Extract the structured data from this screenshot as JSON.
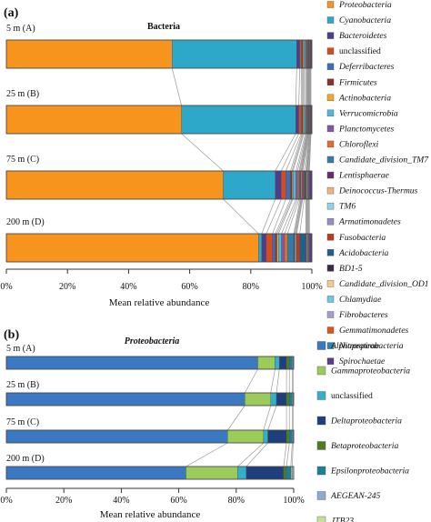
{
  "chart_data": [
    {
      "type": "bar",
      "panel_label": "(a)",
      "title": "Bacteria",
      "xlabel": "Mean relative abundance",
      "xlim": [
        0,
        100
      ],
      "x_ticks": [
        "0%",
        "20%",
        "40%",
        "60%",
        "80%",
        "100%"
      ],
      "categories": [
        "5 m (A)",
        "25 m (B)",
        "75 m (C)",
        "200 m (D)"
      ],
      "legend_position": "right",
      "series": [
        {
          "name": "Proteobacteria",
          "color": "#F7941D",
          "values": [
            54.5,
            57.5,
            71.0,
            83.0
          ]
        },
        {
          "name": "Cyanobacteria",
          "color": "#2EA8C8",
          "values": [
            41.0,
            37.5,
            17.0,
            1.0
          ]
        },
        {
          "name": "Bacteroidetes",
          "color": "#4B3F8C",
          "values": [
            1.0,
            1.0,
            2.0,
            1.5
          ]
        },
        {
          "name": "unclassified",
          "color": "#D94A1E",
          "values": [
            0.5,
            0.8,
            1.5,
            2.0
          ]
        },
        {
          "name": "Deferribacteres",
          "color": "#3B6FB6",
          "values": [
            0.3,
            0.3,
            1.5,
            1.0
          ]
        },
        {
          "name": "Firmicutes",
          "color": "#8B2E2E",
          "values": [
            0.3,
            0.3,
            0.5,
            0.5
          ]
        },
        {
          "name": "Actinobacteria",
          "color": "#F5A623",
          "values": [
            0.3,
            0.3,
            0.3,
            0.5
          ]
        },
        {
          "name": "Verrucomicrobia",
          "color": "#4FB8D8",
          "values": [
            0.5,
            0.5,
            1.0,
            1.0
          ]
        },
        {
          "name": "Planctomycetes",
          "color": "#7E57A8",
          "values": [
            0.3,
            0.3,
            0.5,
            1.0
          ]
        },
        {
          "name": "Chloroflexi",
          "color": "#E46A2E",
          "values": [
            0.2,
            0.2,
            0.5,
            1.0
          ]
        },
        {
          "name": "Candidate_division_TM7",
          "color": "#2F7EA8",
          "values": [
            0.1,
            0.1,
            0.3,
            2.0
          ]
        },
        {
          "name": "Lentisphaerae",
          "color": "#6A2A6A",
          "values": [
            0.1,
            0.1,
            0.3,
            0.3
          ]
        },
        {
          "name": "Deinococcus-Thermus",
          "color": "#F4B183",
          "values": [
            0.1,
            0.1,
            0.2,
            0.2
          ]
        },
        {
          "name": "TM6",
          "color": "#8FD3E8",
          "values": [
            0.1,
            0.1,
            0.2,
            0.3
          ]
        },
        {
          "name": "Armatimonadetes",
          "color": "#9A8CC2",
          "values": [
            0.1,
            0.1,
            0.2,
            0.2
          ]
        },
        {
          "name": "Fusobacteria",
          "color": "#C0391B",
          "values": [
            0.1,
            0.1,
            0.5,
            1.0
          ]
        },
        {
          "name": "Acidobacteria",
          "color": "#1F5F8B",
          "values": [
            0.1,
            0.1,
            0.5,
            2.0
          ]
        },
        {
          "name": "BD1-5",
          "color": "#3A2A4A",
          "values": [
            0.1,
            0.1,
            0.2,
            0.2
          ]
        },
        {
          "name": "Candidate_division_OD1",
          "color": "#F9C98B",
          "values": [
            0.1,
            0.1,
            0.2,
            0.2
          ]
        },
        {
          "name": "Chlamydiae",
          "color": "#6EC6E0",
          "values": [
            0.1,
            0.1,
            0.2,
            0.2
          ]
        },
        {
          "name": "Fibrobacteres",
          "color": "#A99BD0",
          "values": [
            0.1,
            0.1,
            0.2,
            0.2
          ]
        },
        {
          "name": "Gemmatimonadetes",
          "color": "#E0541A",
          "values": [
            0.1,
            0.1,
            0.2,
            0.2
          ]
        },
        {
          "name": "Nitrospirae",
          "color": "#2C86B0",
          "values": [
            0.1,
            0.1,
            0.2,
            0.2
          ]
        },
        {
          "name": "Spirochaetae",
          "color": "#5A3C8A",
          "values": [
            0.3,
            0.3,
            0.8,
            0.8
          ]
        }
      ]
    },
    {
      "type": "bar",
      "panel_label": "(b)",
      "title": "Proteobacteria",
      "xlabel": "Mean relative abundance",
      "xlim": [
        0,
        100
      ],
      "x_ticks": [
        "0%",
        "20%",
        "40%",
        "60%",
        "80%",
        "100%"
      ],
      "categories": [
        "5 m (A)",
        "25 m (B)",
        "75 m (C)",
        "200 m (D)"
      ],
      "legend_position": "right",
      "series": [
        {
          "name": "Alphaproteobacteria",
          "color": "#3A78C2",
          "values": [
            87.5,
            83.0,
            77.0,
            62.5
          ]
        },
        {
          "name": "Gammaproteobacteria",
          "color": "#9BCB5B",
          "values": [
            6.0,
            9.0,
            12.5,
            18.0
          ]
        },
        {
          "name": "unclassified",
          "color": "#33B0C8",
          "values": [
            1.5,
            2.0,
            1.5,
            3.0
          ]
        },
        {
          "name": "Deltaproteobacteria",
          "color": "#1F3F7A",
          "values": [
            2.5,
            3.5,
            6.5,
            13.0
          ]
        },
        {
          "name": "Betaproteobacteria",
          "color": "#4E7A28",
          "values": [
            1.0,
            1.0,
            1.0,
            1.0
          ]
        },
        {
          "name": "Epsilonproteobacteria",
          "color": "#1B7F95",
          "values": [
            1.0,
            1.0,
            1.0,
            1.5
          ]
        },
        {
          "name": "AEGEAN-245",
          "color": "#8FA9D6",
          "values": [
            0.3,
            0.3,
            0.3,
            0.5
          ]
        },
        {
          "name": "JTB23",
          "color": "#C6DF9B",
          "values": [
            0.2,
            0.2,
            0.2,
            0.5
          ]
        }
      ]
    }
  ]
}
